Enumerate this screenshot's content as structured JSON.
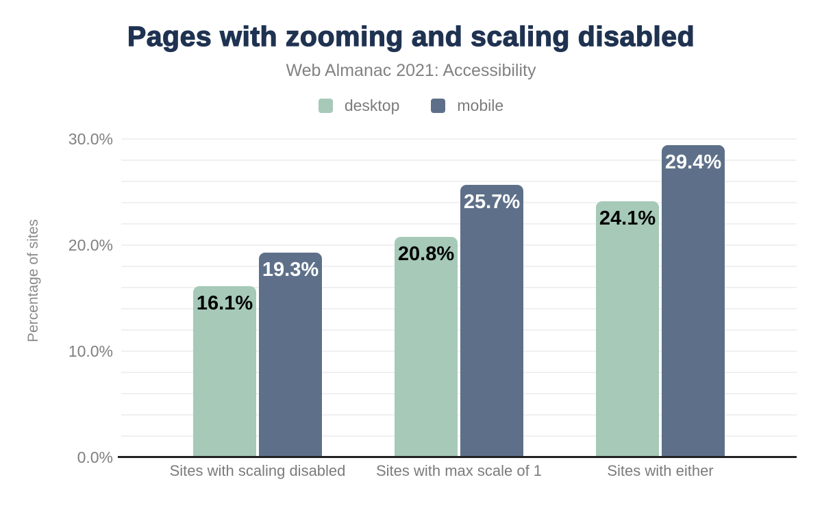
{
  "chart_data": {
    "type": "bar",
    "title": "Pages with zooming and scaling disabled",
    "subtitle": "Web Almanac 2021: Accessibility",
    "categories": [
      "Sites with scaling disabled",
      "Sites with max scale of 1",
      "Sites with either"
    ],
    "series": [
      {
        "name": "desktop",
        "color": "#a6c9b8",
        "label_color": "#000000",
        "values": [
          16.1,
          20.8,
          24.1
        ]
      },
      {
        "name": "mobile",
        "color": "#5e7089",
        "label_color": "#ffffff",
        "values": [
          19.3,
          25.7,
          29.4
        ]
      }
    ],
    "value_labels": [
      [
        "16.1%",
        "20.8%",
        "24.1%"
      ],
      [
        "19.3%",
        "25.7%",
        "29.4%"
      ]
    ],
    "ylabel": "Percentage of sites",
    "yticks": [
      0,
      10,
      20,
      30
    ],
    "ytick_labels": [
      "0.0%",
      "10.0%",
      "20.0%",
      "30.0%"
    ],
    "gridline_step": 2,
    "ylim": [
      0,
      32
    ],
    "grid": true,
    "legend_position": "top"
  },
  "colors": {
    "title": "#1f3251",
    "subtitle": "#828282",
    "axis_text": "#7b7b7b",
    "gridline": "#f0f0f0",
    "axis_line": "#212121",
    "background": "#ffffff"
  }
}
